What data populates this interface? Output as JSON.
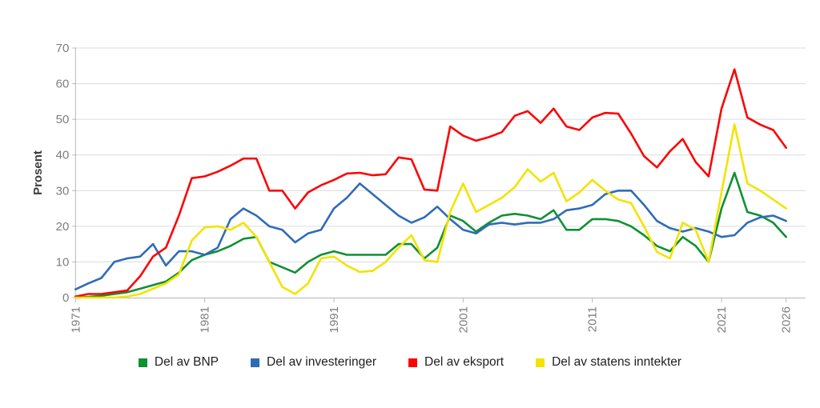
{
  "chart_data": {
    "type": "line",
    "title": "",
    "ylabel": "Prosent",
    "xlabel": "",
    "ylim": [
      0,
      70
    ],
    "y_ticks": [
      0,
      10,
      20,
      30,
      40,
      50,
      60,
      70
    ],
    "xlim": [
      1971,
      2026
    ],
    "x_tick_labels": [
      "1971",
      "1981",
      "1991",
      "2001",
      "2011",
      "2021",
      "2026"
    ],
    "x_tick_years": [
      1971,
      1981,
      1991,
      2001,
      2011,
      2021,
      2026
    ],
    "grid": "horizontal",
    "legend_position": "bottom",
    "x": [
      1971,
      1972,
      1973,
      1974,
      1975,
      1976,
      1977,
      1978,
      1979,
      1980,
      1981,
      1982,
      1983,
      1984,
      1985,
      1986,
      1987,
      1988,
      1989,
      1990,
      1991,
      1992,
      1993,
      1994,
      1995,
      1996,
      1997,
      1998,
      1999,
      2000,
      2001,
      2002,
      2003,
      2004,
      2005,
      2006,
      2007,
      2008,
      2009,
      2010,
      2011,
      2012,
      2013,
      2014,
      2015,
      2016,
      2017,
      2018,
      2019,
      2020,
      2021,
      2022,
      2023,
      2024,
      2025,
      2026
    ],
    "series": [
      {
        "name": "Del av BNP",
        "color": "#0e9132",
        "values": [
          0,
          0.2,
          0.5,
          1,
          1.5,
          2.5,
          3.5,
          4.5,
          7,
          10.5,
          12,
          13,
          14.5,
          16.5,
          17,
          10,
          8.5,
          7,
          10,
          12,
          13,
          12,
          12,
          12,
          12,
          15,
          15,
          11,
          14,
          23,
          21.5,
          18.5,
          21,
          23,
          23.5,
          23,
          22,
          24.5,
          19,
          19,
          22,
          22,
          21.5,
          20,
          17.5,
          14.5,
          13,
          17,
          14.5,
          10,
          25,
          35,
          24,
          23,
          21,
          17
        ]
      },
      {
        "name": "Del av investeringer",
        "color": "#2f6cb5",
        "values": [
          2.3,
          4,
          5.5,
          10,
          11,
          11.5,
          15,
          9,
          13,
          13,
          12,
          14,
          22,
          25,
          23,
          20,
          19,
          15.5,
          18,
          19,
          25,
          28,
          32,
          29,
          26,
          23,
          21,
          22.5,
          25.5,
          22,
          19,
          18,
          20.5,
          21,
          20.5,
          21,
          21,
          22,
          24.5,
          25,
          26,
          29,
          30,
          30,
          26,
          21.5,
          19.5,
          18.5,
          19.5,
          18.5,
          17,
          17.5,
          21,
          22.5,
          23,
          21.5
        ]
      },
      {
        "name": "Del av eksport",
        "color": "#fa0505",
        "values": [
          0.3,
          1,
          1,
          1.5,
          2,
          6,
          11.5,
          14,
          23,
          33.5,
          34,
          35.3,
          37,
          39,
          39,
          30,
          30,
          25,
          29.5,
          31.5,
          33,
          34.8,
          35,
          34.3,
          34.6,
          39.3,
          38.8,
          30.3,
          30,
          48,
          45.4,
          44,
          45,
          46.4,
          51,
          52.3,
          49,
          53,
          48,
          47,
          50.5,
          51.8,
          51.6,
          46,
          39.7,
          36.5,
          41,
          44.5,
          38,
          34,
          53,
          64,
          50.5,
          48.5,
          47,
          42
        ]
      },
      {
        "name": "Del av statens inntekter",
        "color": "#f3e300",
        "values": [
          0,
          0,
          0,
          0,
          0.3,
          1,
          2.5,
          4,
          6.5,
          16,
          19.7,
          20,
          19,
          21,
          17,
          10,
          3,
          1,
          4,
          11,
          11.5,
          9,
          7.2,
          7.5,
          10,
          14,
          17.5,
          10.5,
          10,
          24,
          32,
          24,
          26,
          28,
          31,
          36,
          32.5,
          35,
          27,
          29.5,
          33,
          30,
          27.5,
          26.5,
          20,
          12.8,
          11,
          21,
          19,
          10,
          29.5,
          48.6,
          32,
          30,
          27.5,
          25
        ]
      }
    ]
  },
  "style": {
    "gridline_color": "#dcdcdc",
    "axis_color": "#b8b8b8",
    "tick_label_color": "#7e7e7e",
    "legend_text_color": "#1f1f1f",
    "background": "#ffffff"
  }
}
